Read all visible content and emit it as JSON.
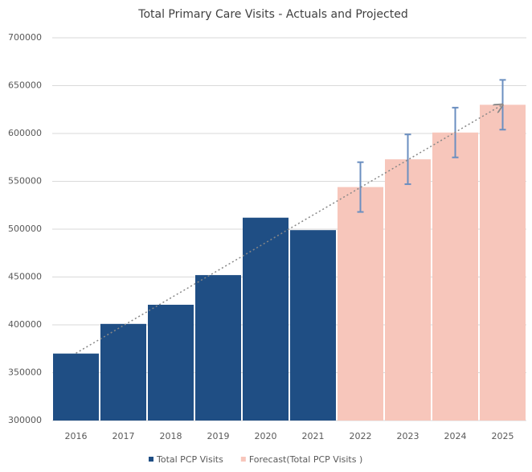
{
  "chart_data": {
    "type": "bar",
    "title": "Total Primary Care Visits - Actuals and Projected",
    "categories": [
      "2016",
      "2017",
      "2018",
      "2019",
      "2020",
      "2021",
      "2022",
      "2023",
      "2024",
      "2025"
    ],
    "series": [
      {
        "name": "Total PCP Visits",
        "color": "#1f4e84",
        "values": [
          370000,
          401000,
          421000,
          452000,
          512000,
          499000,
          null,
          null,
          null,
          null
        ]
      },
      {
        "name": "Forecast(Total PCP Visits )",
        "color": "#f7c6bb",
        "values": [
          null,
          null,
          null,
          null,
          null,
          null,
          544000,
          573000,
          601000,
          630000
        ],
        "errors": [
          null,
          null,
          null,
          null,
          null,
          null,
          26000,
          26000,
          26000,
          26000
        ],
        "error_color": "#6b8fc0"
      }
    ],
    "trendline": true,
    "ylim": [
      300000,
      700000
    ],
    "yticks": [
      300000,
      350000,
      400000,
      450000,
      500000,
      550000,
      600000,
      650000,
      700000
    ],
    "grid": true,
    "legend": "bottom"
  }
}
